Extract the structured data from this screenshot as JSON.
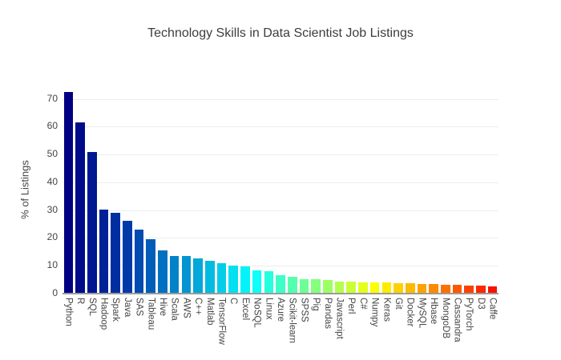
{
  "chart_data": {
    "type": "bar",
    "title": "Technology Skills in Data Scientist Job Listings",
    "xlabel": "",
    "ylabel": "% of Listings",
    "ylim": [
      0,
      74.5
    ],
    "yticks": [
      0,
      10,
      20,
      30,
      40,
      50,
      60,
      70
    ],
    "grid": true,
    "legend_position": "none",
    "colormap": "jet",
    "background_color": "#ffffff",
    "title_color": "#3d3d3d",
    "tick_color": "#444444",
    "gridline_color": "#ececec",
    "axisline_color": "#9b9b9b",
    "categories": [
      "Python",
      "R",
      "SQL",
      "Hadoop",
      "Spark",
      "Java",
      "SAS",
      "Tableau",
      "Hive",
      "Scala",
      "AWS",
      "C++",
      "Matlab",
      "TensorFlow",
      "C",
      "Excel",
      "NoSQL",
      "Linux",
      "Azure",
      "Scikit-learn",
      "SPSS",
      "Pig",
      "Pandas",
      "Javascript",
      "Perl",
      "C#",
      "Numpy",
      "Keras",
      "Git",
      "Docker",
      "MySQL",
      "Hbase",
      "MongoDB",
      "Cassandra",
      "PyTorch",
      "D3",
      "Caffe"
    ],
    "values": [
      72.5,
      61.5,
      51,
      30.2,
      29,
      26.3,
      23,
      19.5,
      15.5,
      13.6,
      13.5,
      12.8,
      11.8,
      10.9,
      10.1,
      9.8,
      8.3,
      8.1,
      6.6,
      6.0,
      5.3,
      5.1,
      5.0,
      4.4,
      4.2,
      4.1,
      4.0,
      3.9,
      3.8,
      3.7,
      3.5,
      3.4,
      3.3,
      3.1,
      2.9,
      2.8,
      2.7
    ],
    "colors": [
      "#000083",
      "#000B8A",
      "#001792",
      "#002299",
      "#002EA1",
      "#0039A8",
      "#004AB0",
      "#015DB8",
      "#0170C0",
      "#0282C9",
      "#0295D1",
      "#03A7D9",
      "#03BAE1",
      "#04CDE9",
      "#04DFF1",
      "#05F2F9",
      "#0CFFF8",
      "#24FFDF",
      "#3CFFC7",
      "#54FFAF",
      "#6CFF96",
      "#84FF7E",
      "#9CFF65",
      "#B3FF4D",
      "#CBFF35",
      "#E3FF1C",
      "#FBFF04",
      "#FFEB00",
      "#FED200",
      "#FEBA00",
      "#FDA200",
      "#FD8900",
      "#FC7100",
      "#FC5800",
      "#FB4000",
      "#FB2800",
      "#FA0F00"
    ]
  }
}
